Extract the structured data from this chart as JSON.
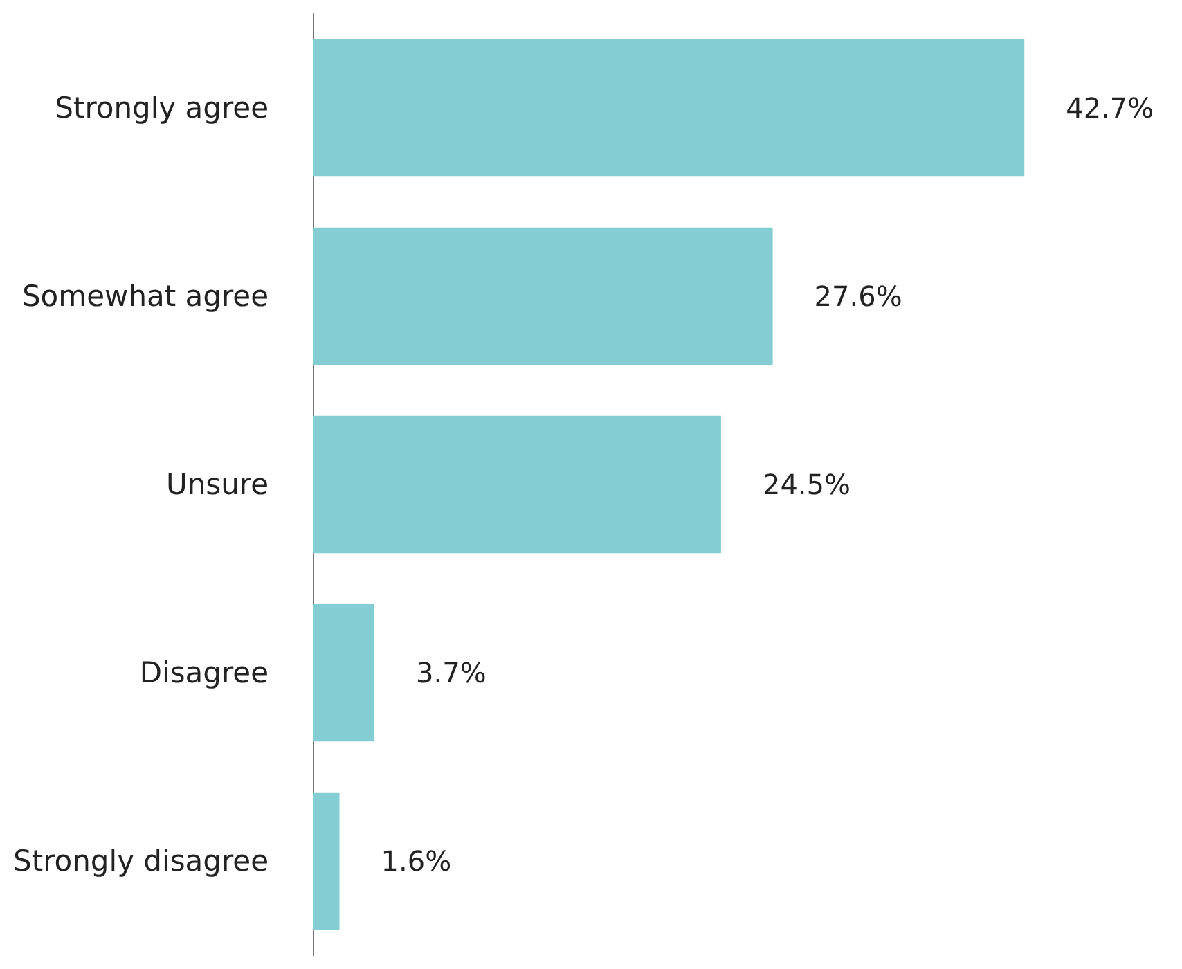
{
  "chart_data": {
    "type": "bar",
    "orientation": "horizontal",
    "categories": [
      "Strongly agree",
      "Somewhat agree",
      "Unsure",
      "Disagree",
      "Strongly disagree"
    ],
    "values": [
      42.7,
      27.6,
      24.5,
      3.7,
      1.6
    ],
    "value_labels": [
      "42.7%",
      "27.6%",
      "24.5%",
      "3.7%",
      "1.6%"
    ],
    "color": "#84cdd3",
    "tick_labels": "y"
  }
}
